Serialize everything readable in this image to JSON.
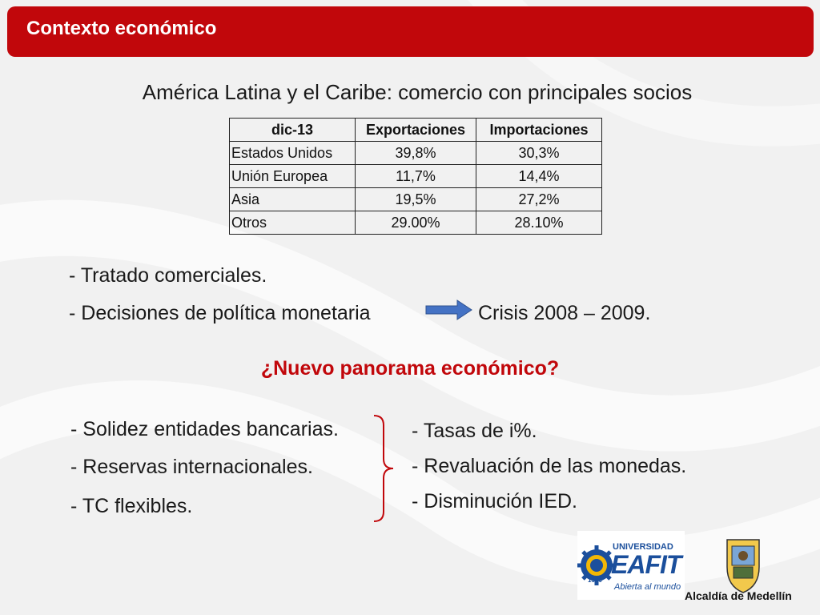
{
  "header": {
    "title": "Contexto económico"
  },
  "subtitle": "América Latina y el Caribe: comercio con principales socios",
  "table": {
    "headers": [
      "dic-13",
      "Exportaciones",
      "Importaciones"
    ],
    "rows": [
      [
        "Estados Unidos",
        "39,8%",
        "30,3%"
      ],
      [
        "Unión Europea",
        "11,7%",
        "14,4%"
      ],
      [
        "Asia",
        "19,5%",
        "27,2%"
      ],
      [
        "Otros",
        "29.00%",
        "28.10%"
      ]
    ]
  },
  "bullets_top": [
    "-  Tratado comerciales.",
    "-  Decisiones de política monetaria"
  ],
  "crisis_text": "Crisis 2008 – 2009.",
  "question": "¿Nuevo panorama económico?",
  "left_list": [
    "- Solidez entidades bancarias.",
    "- Reservas internacionales.",
    "- TC flexibles."
  ],
  "right_list": [
    "-  Tasas de i%.",
    "-  Revaluación de las monedas.",
    "-  Disminución IED."
  ],
  "logos": {
    "eafit_top": "UNIVERSIDAD",
    "eafit_main": "EAFIT",
    "eafit_tagline": "Abierta al mundo",
    "eafit_year": "1960",
    "alcaldia": "Alcaldía de Medellín"
  },
  "colors": {
    "accent": "#c1070b",
    "arrow": "#4472c4",
    "eafit_blue": "#1b4f9c",
    "eafit_yellow": "#f2b705"
  }
}
